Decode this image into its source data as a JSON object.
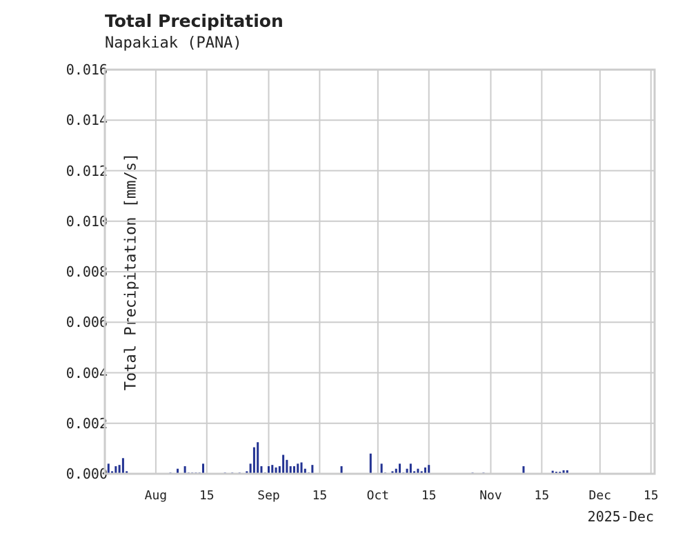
{
  "header": {
    "title": "Total Precipitation",
    "subtitle": "Napakiak (PANA)"
  },
  "axes": {
    "ylabel": "Total Precipitation [mm/s]",
    "yticks": [
      "0.000",
      "0.002",
      "0.004",
      "0.006",
      "0.008",
      "0.010",
      "0.012",
      "0.014",
      "0.016"
    ],
    "xticks": [
      "Aug",
      "15",
      "Sep",
      "15",
      "Oct",
      "15",
      "Nov",
      "15",
      "Dec",
      "15"
    ],
    "x_offset_label": "2025-Dec"
  },
  "colors": {
    "series": "#233393",
    "grid": "#cccccc",
    "text": "#222222"
  },
  "chart_data": {
    "type": "area",
    "title": "Total Precipitation",
    "subtitle": "Napakiak (PANA)",
    "xlabel": "",
    "ylabel": "Total Precipitation [mm/s]",
    "ylim": [
      0,
      0.016
    ],
    "xlim": [
      "2025-07-18",
      "2025-12-16"
    ],
    "grid": true,
    "legend": null,
    "x_tick_labels": [
      "Aug",
      "15",
      "Sep",
      "15",
      "Oct",
      "15",
      "Nov",
      "15",
      "Dec",
      "15"
    ],
    "y_tick_labels": [
      "0.000",
      "0.002",
      "0.004",
      "0.006",
      "0.008",
      "0.010",
      "0.012",
      "0.014",
      "0.016"
    ],
    "offset_label": "2025-Dec",
    "series": [
      {
        "name": "Total Precipitation",
        "color": "#233393",
        "points": [
          {
            "x": "2025-07-18",
            "y": 0.00055
          },
          {
            "x": "2025-07-19",
            "y": 0.0004
          },
          {
            "x": "2025-07-20",
            "y": 0.0001
          },
          {
            "x": "2025-07-21",
            "y": 0.0003
          },
          {
            "x": "2025-07-22",
            "y": 0.00035
          },
          {
            "x": "2025-07-23",
            "y": 0.00062
          },
          {
            "x": "2025-07-24",
            "y": 0.0001
          },
          {
            "x": "2025-08-05",
            "y": 5e-05
          },
          {
            "x": "2025-08-07",
            "y": 0.0002
          },
          {
            "x": "2025-08-09",
            "y": 0.0003
          },
          {
            "x": "2025-08-10",
            "y": 5e-05
          },
          {
            "x": "2025-08-11",
            "y": 5e-05
          },
          {
            "x": "2025-08-12",
            "y": 5e-05
          },
          {
            "x": "2025-08-13",
            "y": 5e-05
          },
          {
            "x": "2025-08-14",
            "y": 0.0004
          },
          {
            "x": "2025-08-20",
            "y": 5e-05
          },
          {
            "x": "2025-08-22",
            "y": 5e-05
          },
          {
            "x": "2025-08-24",
            "y": 5e-05
          },
          {
            "x": "2025-08-26",
            "y": 0.0001
          },
          {
            "x": "2025-08-27",
            "y": 0.0004
          },
          {
            "x": "2025-08-28",
            "y": 0.00105
          },
          {
            "x": "2025-08-29",
            "y": 0.00125
          },
          {
            "x": "2025-08-30",
            "y": 0.0003
          },
          {
            "x": "2025-08-31",
            "y": 5e-05
          },
          {
            "x": "2025-09-01",
            "y": 0.0003
          },
          {
            "x": "2025-09-02",
            "y": 0.00035
          },
          {
            "x": "2025-09-03",
            "y": 0.00025
          },
          {
            "x": "2025-09-04",
            "y": 0.0003
          },
          {
            "x": "2025-09-05",
            "y": 0.00075
          },
          {
            "x": "2025-09-06",
            "y": 0.00055
          },
          {
            "x": "2025-09-07",
            "y": 0.0003
          },
          {
            "x": "2025-09-08",
            "y": 0.0003
          },
          {
            "x": "2025-09-09",
            "y": 0.0004
          },
          {
            "x": "2025-09-10",
            "y": 0.00045
          },
          {
            "x": "2025-09-11",
            "y": 0.0002
          },
          {
            "x": "2025-09-12",
            "y": 5e-05
          },
          {
            "x": "2025-09-13",
            "y": 0.00035
          },
          {
            "x": "2025-09-21",
            "y": 0.0003
          },
          {
            "x": "2025-09-29",
            "y": 0.0008
          },
          {
            "x": "2025-10-02",
            "y": 0.0004
          },
          {
            "x": "2025-10-03",
            "y": 5e-05
          },
          {
            "x": "2025-10-05",
            "y": 0.0001
          },
          {
            "x": "2025-10-06",
            "y": 0.0002
          },
          {
            "x": "2025-10-07",
            "y": 0.0004
          },
          {
            "x": "2025-10-08",
            "y": 5e-05
          },
          {
            "x": "2025-10-09",
            "y": 0.0002
          },
          {
            "x": "2025-10-10",
            "y": 0.0004
          },
          {
            "x": "2025-10-11",
            "y": 0.0001
          },
          {
            "x": "2025-10-12",
            "y": 0.0002
          },
          {
            "x": "2025-10-13",
            "y": 0.0001
          },
          {
            "x": "2025-10-14",
            "y": 0.00025
          },
          {
            "x": "2025-10-15",
            "y": 0.00035
          },
          {
            "x": "2025-10-27",
            "y": 5e-05
          },
          {
            "x": "2025-10-30",
            "y": 5e-05
          },
          {
            "x": "2025-11-10",
            "y": 0.0003
          },
          {
            "x": "2025-11-18",
            "y": 0.00012
          },
          {
            "x": "2025-11-19",
            "y": 8e-05
          },
          {
            "x": "2025-11-20",
            "y": 8e-05
          },
          {
            "x": "2025-11-21",
            "y": 0.00014
          },
          {
            "x": "2025-11-22",
            "y": 0.00014
          }
        ]
      }
    ]
  }
}
